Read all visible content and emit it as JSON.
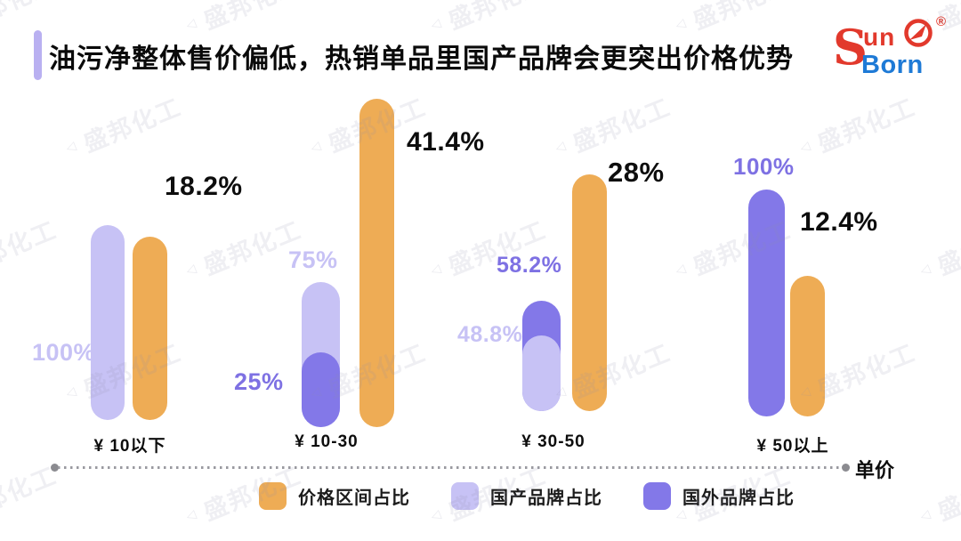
{
  "header": {
    "title": "油污净整体售价偏低，热销单品里国产品牌会更突出价格优势"
  },
  "logo": {
    "s": "S",
    "un": "un",
    "born": "Born",
    "registered": "®"
  },
  "watermark": {
    "text": "盛邦化工"
  },
  "axis": {
    "label": "单价"
  },
  "colors": {
    "price": "#EEAC55",
    "domestic": "#C7C2F5",
    "foreign": "#8378E8",
    "foreign_label": "#7E71E3",
    "value_black": "#0d0d0d",
    "accent": "#B9B0F1",
    "logo_red": "#E2392C",
    "logo_blue": "#1E7AD6"
  },
  "legend": [
    {
      "id": "price",
      "label": "价格区间占比"
    },
    {
      "id": "domestic",
      "label": "国产品牌占比"
    },
    {
      "id": "foreign",
      "label": "国外品牌占比"
    }
  ],
  "chart_data": {
    "type": "bar",
    "title": "油污净整体售价偏低，热销单品里国产品牌会更突出价格优势",
    "xlabel": "单价",
    "categories": [
      "¥ 10以下",
      "¥ 10-30",
      "¥ 30-50",
      "¥ 50以上"
    ],
    "series": [
      {
        "name": "价格区间占比",
        "values": [
          18.2,
          41.4,
          28,
          12.4
        ]
      },
      {
        "name": "国产品牌占比",
        "values": [
          100,
          75,
          48.8,
          null
        ]
      },
      {
        "name": "国外品牌占比",
        "values": [
          null,
          25,
          58.2,
          100
        ]
      }
    ],
    "value_labels": [
      [
        "18.2%",
        "41.4%",
        "28%",
        "12.4%"
      ],
      [
        "100%",
        "75%",
        "48.8%",
        null
      ],
      [
        null,
        "25%",
        "58.2%",
        "100%"
      ]
    ],
    "ylim": [
      0,
      100
    ],
    "grid": false,
    "legend_position": "bottom"
  }
}
